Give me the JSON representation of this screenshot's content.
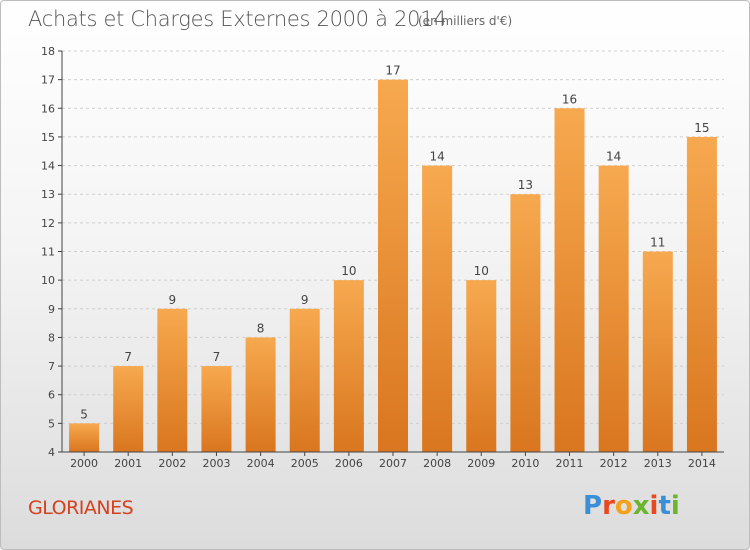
{
  "header": {
    "title": "Achats et Charges Externes 2000 à 2014",
    "unit": "(en milliers d'€)"
  },
  "footer": {
    "commune": "GLORIANES",
    "logo_letters": [
      {
        "char": "P",
        "color": "#3a8fd6"
      },
      {
        "char": "r",
        "color": "#e8481f"
      },
      {
        "char": "o",
        "color": "#f2a21c"
      },
      {
        "char": "x",
        "color": "#6bb52c"
      },
      {
        "char": "i",
        "color": "#e8481f"
      },
      {
        "char": "t",
        "color": "#3a8fd6"
      },
      {
        "char": "i",
        "color": "#6bb52c"
      }
    ]
  },
  "colors": {
    "bar_light": "#f7a94f",
    "bar_dark": "#d9761f",
    "axis": "#444444",
    "grid": "#cfcfcf",
    "label": "#444444"
  },
  "chart_data": {
    "type": "bar",
    "title": "Achats et Charges Externes 2000 à 2014",
    "categories": [
      "2000",
      "2001",
      "2002",
      "2003",
      "2004",
      "2005",
      "2006",
      "2007",
      "2008",
      "2009",
      "2010",
      "2011",
      "2012",
      "2013",
      "2014"
    ],
    "values": [
      5,
      7,
      9,
      7,
      8,
      9,
      10,
      17,
      14,
      10,
      13,
      16,
      14,
      11,
      15
    ],
    "ylim": [
      4,
      18
    ],
    "yticks": [
      4,
      5,
      6,
      7,
      8,
      9,
      10,
      11,
      12,
      13,
      14,
      15,
      16,
      17,
      18
    ],
    "grid": true,
    "data_labels": true
  }
}
